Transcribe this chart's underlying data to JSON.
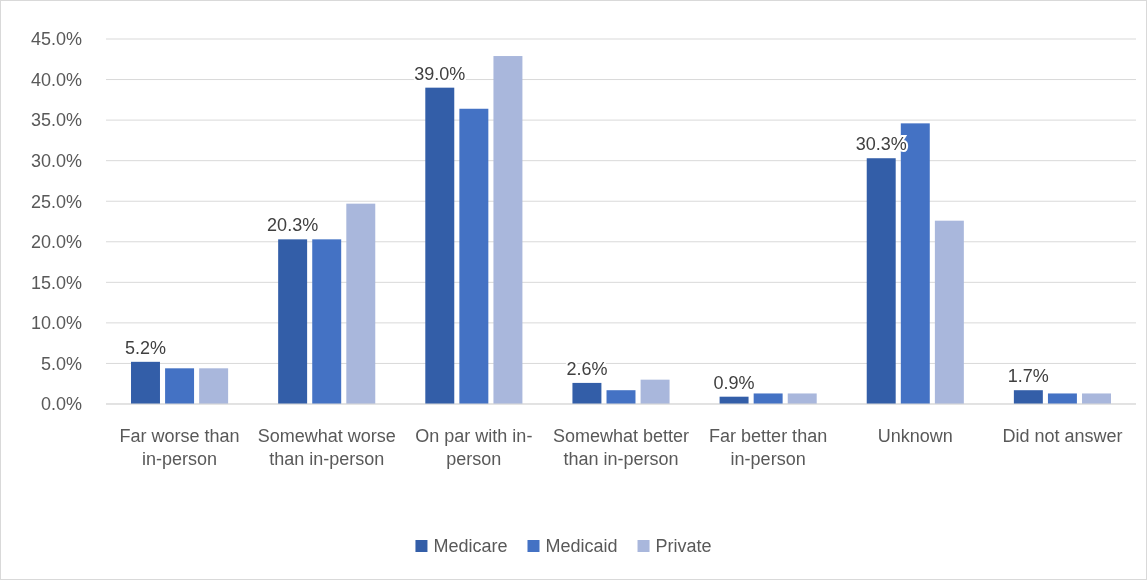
{
  "chart_data": {
    "type": "bar",
    "categories": [
      "Far worse than in-person",
      "Somewhat worse than in-person",
      "On par with in-person",
      "Somewhat better than in-person",
      "Far better than in-person",
      "Unknown",
      "Did not answer"
    ],
    "series": [
      {
        "name": "Medicare",
        "color": "#335ea8",
        "values": [
          5.2,
          20.3,
          39.0,
          2.6,
          0.9,
          30.3,
          1.7
        ],
        "value_labels": [
          "5.2%",
          "20.3%",
          "39.0%",
          "2.6%",
          "0.9%",
          "30.3%",
          "1.7%"
        ]
      },
      {
        "name": "Medicaid",
        "color": "#4472c4",
        "values": [
          4.4,
          20.3,
          36.4,
          1.7,
          1.3,
          34.6,
          1.3
        ]
      },
      {
        "name": "Private",
        "color": "#a9b7dc",
        "values": [
          4.4,
          24.7,
          42.9,
          3.0,
          1.3,
          22.6,
          1.3
        ]
      }
    ],
    "ylim": [
      0,
      45
    ],
    "yticks": [
      {
        "value": 0,
        "label": "0.0%"
      },
      {
        "value": 5,
        "label": "5.0%"
      },
      {
        "value": 10,
        "label": "10.0%"
      },
      {
        "value": 15,
        "label": "15.0%"
      },
      {
        "value": 20,
        "label": "20.0%"
      },
      {
        "value": 25,
        "label": "25.0%"
      },
      {
        "value": 30,
        "label": "30.0%"
      },
      {
        "value": 35,
        "label": "35.0%"
      },
      {
        "value": 40,
        "label": "40.0%"
      },
      {
        "value": 45,
        "label": "45.0%"
      }
    ],
    "grid": "y",
    "legend": "bottom"
  }
}
